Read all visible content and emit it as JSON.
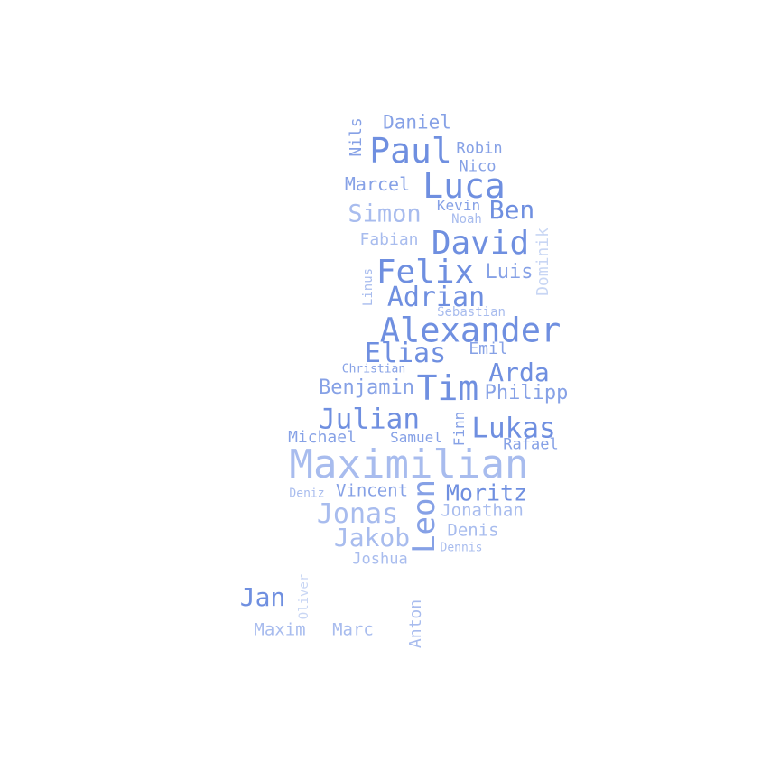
{
  "colors": {
    "background": "#ffffff",
    "dark": "#6f8fe0",
    "mid": "#86a1e6",
    "light": "#a8bcee",
    "faint": "#c8d6f4"
  },
  "words": [
    {
      "text": "Maximilian",
      "shade": "light"
    },
    {
      "text": "Alexander",
      "shade": "dark"
    },
    {
      "text": "Paul",
      "shade": "dark"
    },
    {
      "text": "Luca",
      "shade": "dark"
    },
    {
      "text": "David",
      "shade": "dark"
    },
    {
      "text": "Felix",
      "shade": "dark"
    },
    {
      "text": "Tim",
      "shade": "dark"
    },
    {
      "text": "Leon",
      "shade": "mid"
    },
    {
      "text": "Adrian",
      "shade": "dark"
    },
    {
      "text": "Elias",
      "shade": "dark"
    },
    {
      "text": "Julian",
      "shade": "dark"
    },
    {
      "text": "Lukas",
      "shade": "dark"
    },
    {
      "text": "Jonas",
      "shade": "light"
    },
    {
      "text": "Jakob",
      "shade": "light"
    },
    {
      "text": "Moritz",
      "shade": "dark"
    },
    {
      "text": "Simon",
      "shade": "light"
    },
    {
      "text": "Ben",
      "shade": "dark"
    },
    {
      "text": "Arda",
      "shade": "dark"
    },
    {
      "text": "Jan",
      "shade": "dark"
    },
    {
      "text": "Daniel",
      "shade": "mid"
    },
    {
      "text": "Marcel",
      "shade": "mid"
    },
    {
      "text": "Benjamin",
      "shade": "mid"
    },
    {
      "text": "Philipp",
      "shade": "mid"
    },
    {
      "text": "Luis",
      "shade": "mid"
    },
    {
      "text": "Vincent",
      "shade": "mid"
    },
    {
      "text": "Jonathan",
      "shade": "light"
    },
    {
      "text": "Denis",
      "shade": "light"
    },
    {
      "text": "Michael",
      "shade": "mid"
    },
    {
      "text": "Rafael",
      "shade": "mid"
    },
    {
      "text": "Samuel",
      "shade": "mid"
    },
    {
      "text": "Fabian",
      "shade": "light"
    },
    {
      "text": "Robin",
      "shade": "mid"
    },
    {
      "text": "Nico",
      "shade": "mid"
    },
    {
      "text": "Kevin",
      "shade": "mid"
    },
    {
      "text": "Noah",
      "shade": "light"
    },
    {
      "text": "Emil",
      "shade": "mid"
    },
    {
      "text": "Joshua",
      "shade": "light"
    },
    {
      "text": "Maxim",
      "shade": "light"
    },
    {
      "text": "Marc",
      "shade": "light"
    },
    {
      "text": "Sebastian",
      "shade": "light"
    },
    {
      "text": "Christian",
      "shade": "mid"
    },
    {
      "text": "Deniz",
      "shade": "light"
    },
    {
      "text": "Dennis",
      "shade": "light"
    },
    {
      "text": "Nils",
      "shade": "mid"
    },
    {
      "text": "Dominik",
      "shade": "faint"
    },
    {
      "text": "Linus",
      "shade": "light"
    },
    {
      "text": "Finn",
      "shade": "mid"
    },
    {
      "text": "Anton",
      "shade": "light"
    },
    {
      "text": "Oliver",
      "shade": "faint"
    }
  ]
}
